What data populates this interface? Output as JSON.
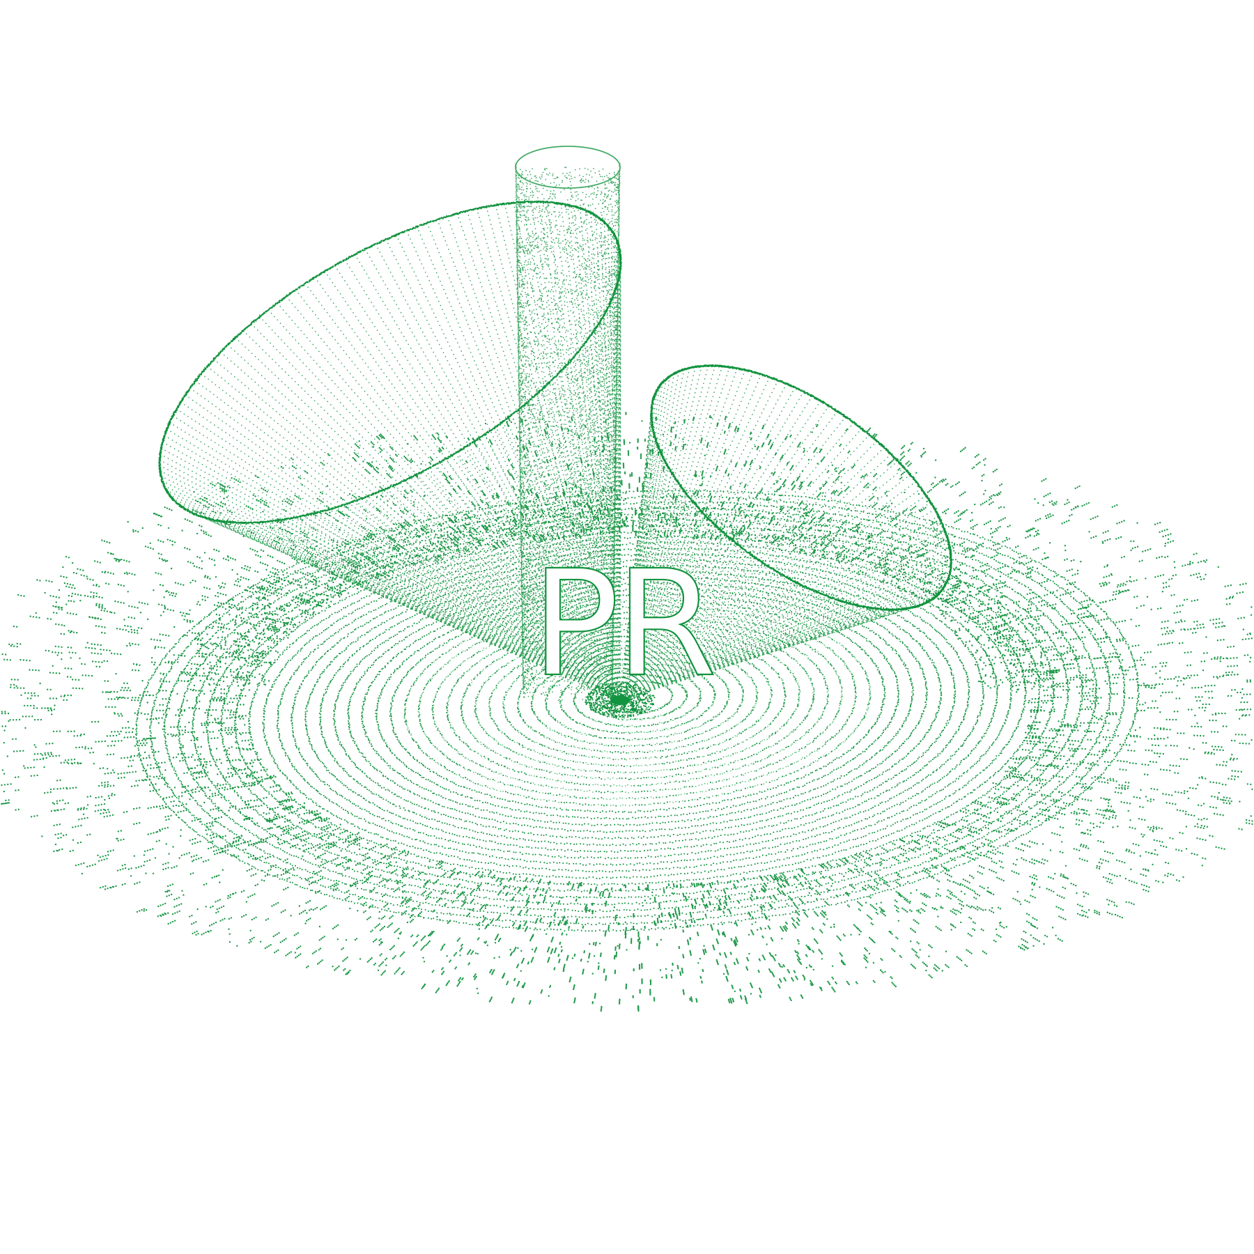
{
  "artwork": {
    "monogram": "PR",
    "colors": {
      "background": "#ffffff",
      "dots": "#12933f",
      "dots_light": "#4dbb72",
      "monogram_fill": "#ffffff",
      "monogram_stroke": "#12933f"
    }
  }
}
